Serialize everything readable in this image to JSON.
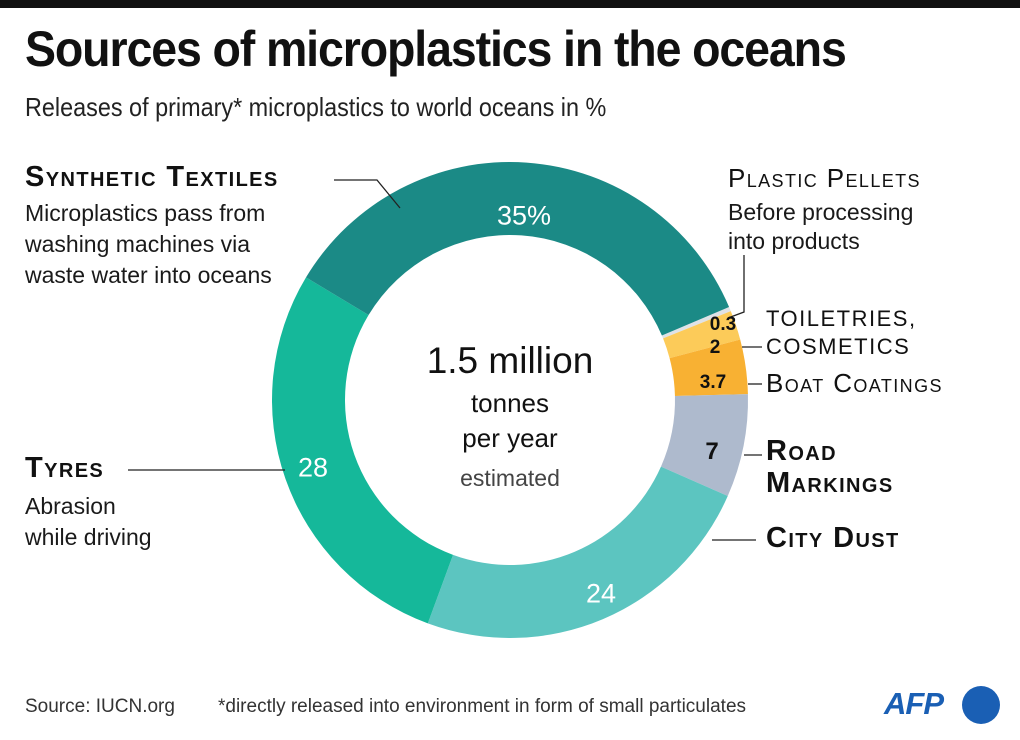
{
  "header": {
    "title": "Sources of microplastics in the oceans",
    "subtitle": "Releases of primary* microplastics to world oceans in %"
  },
  "center": {
    "amount": "1.5 million",
    "unit_line1": "tonnes",
    "unit_line2": "per year",
    "qualifier": "estimated"
  },
  "labels": {
    "textiles": {
      "title": "Synthetic Textiles",
      "desc1": "Microplastics pass from",
      "desc2": "washing machines via",
      "desc3": "waste water into oceans",
      "value": "35%"
    },
    "tyres": {
      "title": "Tyres",
      "desc1": "Abrasion",
      "desc2": "while driving",
      "value": "28"
    },
    "city_dust": {
      "title": "City Dust",
      "value": "24"
    },
    "road_markings": {
      "title1": "Road",
      "title2": "Markings",
      "value": "7"
    },
    "boat_coatings": {
      "title": "Boat Coatings",
      "value": "3.7"
    },
    "toiletries": {
      "title1": "toiletries,",
      "title2": "cosmetics",
      "value": "2"
    },
    "pellets": {
      "title": "Plastic Pellets",
      "desc1": "Before processing",
      "desc2": "into products",
      "value": "0.3"
    }
  },
  "footer": {
    "source": "Source: IUCN.org",
    "note": "*directly released into environment in form of small particulates",
    "logo": "AFP"
  },
  "colors": {
    "textiles": "#1b8a86",
    "tyres": "#15b89a",
    "city_dust": "#5cc5c0",
    "road_markings": "#aebacd",
    "boat_coatings": "#f8b133",
    "toiletries": "#fccb59",
    "pellets": "#dfe2e6",
    "afp_blue": "#1a5fb4"
  },
  "chart_data": {
    "type": "pie",
    "subtype": "donut",
    "title": "Sources of microplastics in the oceans",
    "subtitle": "Releases of primary* microplastics to world oceans in %",
    "center_text": "1.5 million tonnes per year estimated",
    "categories": [
      "Plastic Pellets",
      "Toiletries, Cosmetics",
      "Boat Coatings",
      "Road Markings",
      "City Dust",
      "Tyres",
      "Synthetic Textiles"
    ],
    "values": [
      0.3,
      2,
      3.7,
      7,
      24,
      28,
      35
    ],
    "unit": "%",
    "colors": [
      "#dfe2e6",
      "#fccb59",
      "#f8b133",
      "#aebacd",
      "#5cc5c0",
      "#15b89a",
      "#1b8a86"
    ],
    "annotations": {
      "Synthetic Textiles": "Microplastics pass from washing machines via waste water into oceans",
      "Tyres": "Abrasion while driving",
      "Plastic Pellets": "Before processing into products"
    },
    "source": "Source: IUCN.org",
    "footnote": "*directly released into environment in form of small particulates"
  }
}
